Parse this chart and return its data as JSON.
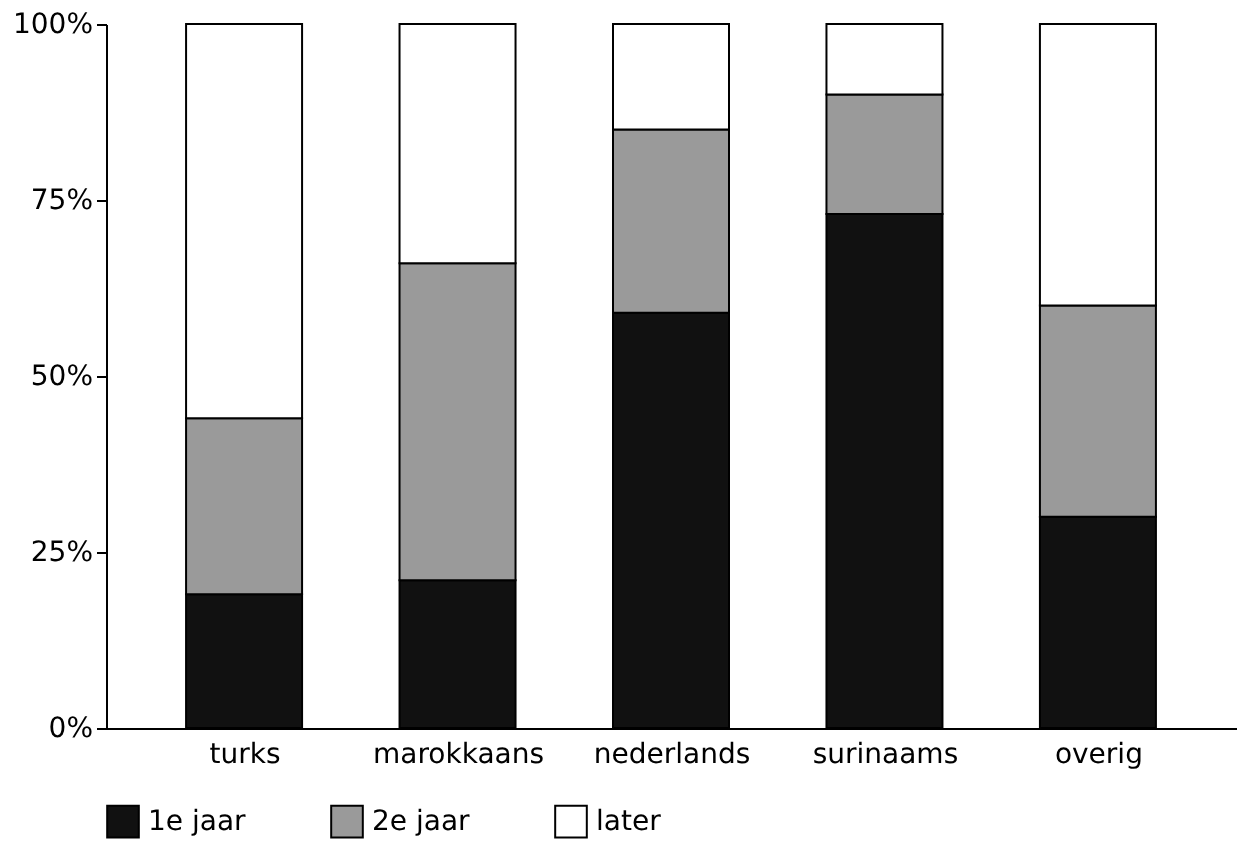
{
  "chart_data": {
    "type": "bar",
    "stacked": true,
    "categories": [
      "turks",
      "marokkaans",
      "nederlands",
      "surinaams",
      "overig"
    ],
    "series": [
      {
        "name": "1e jaar",
        "color": "#111111",
        "values": [
          19,
          21,
          59,
          73,
          30
        ]
      },
      {
        "name": "2e jaar",
        "color": "#9a9a9a",
        "values": [
          25,
          45,
          26,
          17,
          30
        ]
      },
      {
        "name": "later",
        "color": "#ffffff",
        "values": [
          56,
          34,
          15,
          10,
          40
        ]
      }
    ],
    "ylim": [
      0,
      100
    ],
    "yticks": [
      {
        "value": 0,
        "label": "0%"
      },
      {
        "value": 25,
        "label": "25%"
      },
      {
        "value": 50,
        "label": "50%"
      },
      {
        "value": 75,
        "label": "75%"
      },
      {
        "value": 100,
        "label": "100%"
      }
    ],
    "grid": false,
    "legend": "bottom"
  }
}
